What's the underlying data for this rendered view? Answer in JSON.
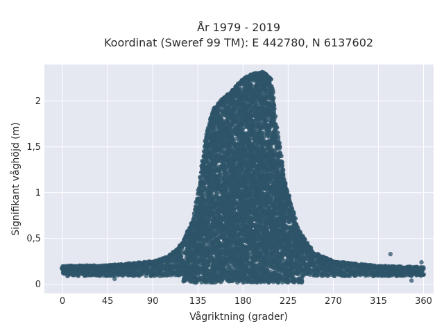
{
  "chart_data": {
    "type": "scatter",
    "title_line1": "År 1979 - 2019",
    "title_line2": "Koordinat (Sweref 99 TM): E 442780, N 6137602",
    "xlabel": "Vågriktning (grader)",
    "ylabel": "Signifikant våghöjd (m)",
    "xlim": [
      -18,
      370
    ],
    "ylim": [
      -0.1,
      2.4
    ],
    "xticks": [
      {
        "value": 0,
        "label": "0"
      },
      {
        "value": 45,
        "label": "45"
      },
      {
        "value": 90,
        "label": "90"
      },
      {
        "value": 135,
        "label": "135"
      },
      {
        "value": 180,
        "label": "180"
      },
      {
        "value": 225,
        "label": "225"
      },
      {
        "value": 270,
        "label": "270"
      },
      {
        "value": 315,
        "label": "315"
      },
      {
        "value": 360,
        "label": "360"
      }
    ],
    "yticks": [
      {
        "value": 0,
        "label": "0"
      },
      {
        "value": 0.5,
        "label": "0,5"
      },
      {
        "value": 1,
        "label": "1"
      },
      {
        "value": 1.5,
        "label": "1,5"
      },
      {
        "value": 2,
        "label": "2"
      }
    ],
    "grid": true,
    "envelope_upper": [
      {
        "x": 0,
        "y": 0.2
      },
      {
        "x": 45,
        "y": 0.21
      },
      {
        "x": 90,
        "y": 0.25
      },
      {
        "x": 105,
        "y": 0.3
      },
      {
        "x": 120,
        "y": 0.45
      },
      {
        "x": 130,
        "y": 0.7
      },
      {
        "x": 137,
        "y": 1.1
      },
      {
        "x": 143,
        "y": 1.6
      },
      {
        "x": 150,
        "y": 1.9
      },
      {
        "x": 160,
        "y": 2.03
      },
      {
        "x": 170,
        "y": 2.12
      },
      {
        "x": 180,
        "y": 2.25
      },
      {
        "x": 190,
        "y": 2.3
      },
      {
        "x": 200,
        "y": 2.32
      },
      {
        "x": 208,
        "y": 2.25
      },
      {
        "x": 213,
        "y": 1.75
      },
      {
        "x": 222,
        "y": 1.1
      },
      {
        "x": 235,
        "y": 0.6
      },
      {
        "x": 250,
        "y": 0.35
      },
      {
        "x": 270,
        "y": 0.25
      },
      {
        "x": 315,
        "y": 0.2
      },
      {
        "x": 360,
        "y": 0.19
      }
    ],
    "outliers": [
      {
        "x": 327,
        "y": 0.33
      },
      {
        "x": 358,
        "y": 0.24
      },
      {
        "x": 348,
        "y": 0.04
      },
      {
        "x": 52,
        "y": 0.06
      },
      {
        "x": 260,
        "y": 0.24
      },
      {
        "x": 251,
        "y": 0.3
      },
      {
        "x": 288,
        "y": 0.19
      },
      {
        "x": 333,
        "y": 0.18
      },
      {
        "x": 303,
        "y": 0.16
      },
      {
        "x": 2,
        "y": 0.13
      },
      {
        "x": 357,
        "y": 0.11
      }
    ],
    "marker_color": "#2e5468"
  }
}
